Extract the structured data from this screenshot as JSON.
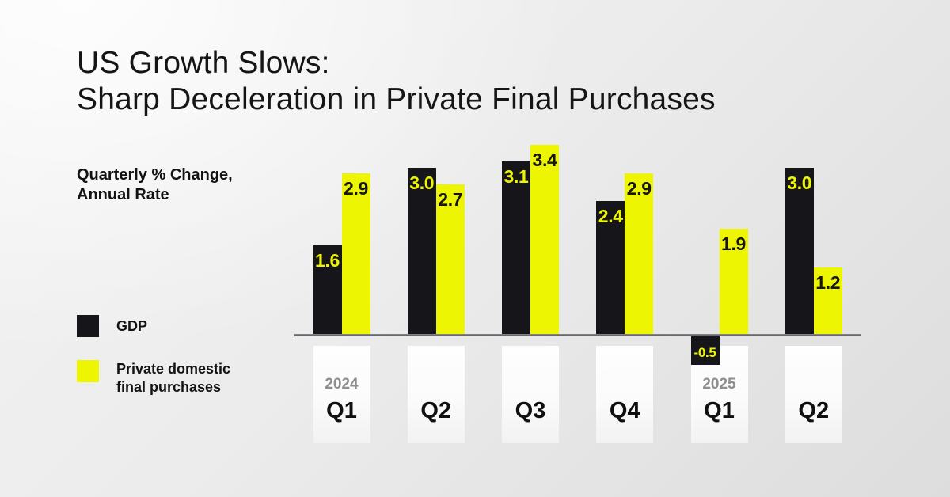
{
  "title": {
    "line1": "US Growth Slows:",
    "line2": "Sharp Deceleration in Private Final Purchases"
  },
  "subtitle": {
    "line1": "Quarterly % Change,",
    "line2": "Annual Rate"
  },
  "legend": {
    "gdp": {
      "label": "GDP",
      "color": "#15151a"
    },
    "pdfp": {
      "line1": "Private domestic",
      "line2": "final purchases",
      "color": "#edf502"
    }
  },
  "colors": {
    "gdp_bar": "#15151a",
    "pdfp_bar": "#edf502",
    "gdp_value_text": "#edf502",
    "pdfp_value_text": "#15151a",
    "year_text": "#8e8e8e",
    "quarter_text": "#101012"
  },
  "chart_data": {
    "type": "bar",
    "title": "US Growth Slows: Sharp Deceleration in Private Final Purchases",
    "ylabel": "Quarterly % Change, Annual Rate",
    "categories": [
      "Q1",
      "Q2",
      "Q3",
      "Q4",
      "Q1",
      "Q2"
    ],
    "year_markers": [
      {
        "index": 0,
        "label": "2024"
      },
      {
        "index": 4,
        "label": "2025"
      }
    ],
    "series": [
      {
        "name": "GDP",
        "color": "#15151a",
        "label_color": "#edf502",
        "values": [
          1.6,
          3.0,
          3.1,
          2.4,
          -0.5,
          3.0
        ],
        "value_labels": [
          "1.6",
          "3.0",
          "3.1",
          "2.4",
          "-0.5",
          "3.0"
        ]
      },
      {
        "name": "Private domestic final purchases",
        "color": "#edf502",
        "label_color": "#15151a",
        "values": [
          2.9,
          2.7,
          3.4,
          2.9,
          1.9,
          1.2
        ],
        "value_labels": [
          "2.9",
          "2.7",
          "3.4",
          "2.9",
          "1.9",
          "1.2"
        ]
      }
    ],
    "ylim": [
      -0.5,
      3.4
    ],
    "grid": false,
    "legend_position": "left",
    "baseline": 0
  }
}
